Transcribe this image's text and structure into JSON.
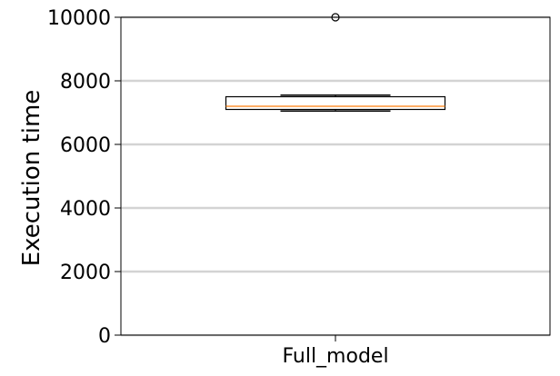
{
  "chart_data": {
    "type": "box",
    "title": "",
    "xlabel": "",
    "ylabel": "Execution time",
    "categories": [
      "Full_model"
    ],
    "boxes": [
      {
        "category": "Full_model",
        "whisker_low": 7050,
        "q1": 7100,
        "median": 7200,
        "q3": 7500,
        "whisker_high": 7550,
        "outliers": [
          10000
        ]
      }
    ],
    "ylim": [
      0,
      10000
    ],
    "yticks": [
      0,
      2000,
      4000,
      6000,
      8000,
      10000
    ],
    "ytick_labels": [
      "0",
      "2000",
      "4000",
      "6000",
      "8000",
      "10000"
    ],
    "grid": "horizontal",
    "colors": {
      "grid": "#d3d3d3",
      "box": "#000000",
      "median": "#ff7f0e",
      "axis": "#000000"
    }
  }
}
